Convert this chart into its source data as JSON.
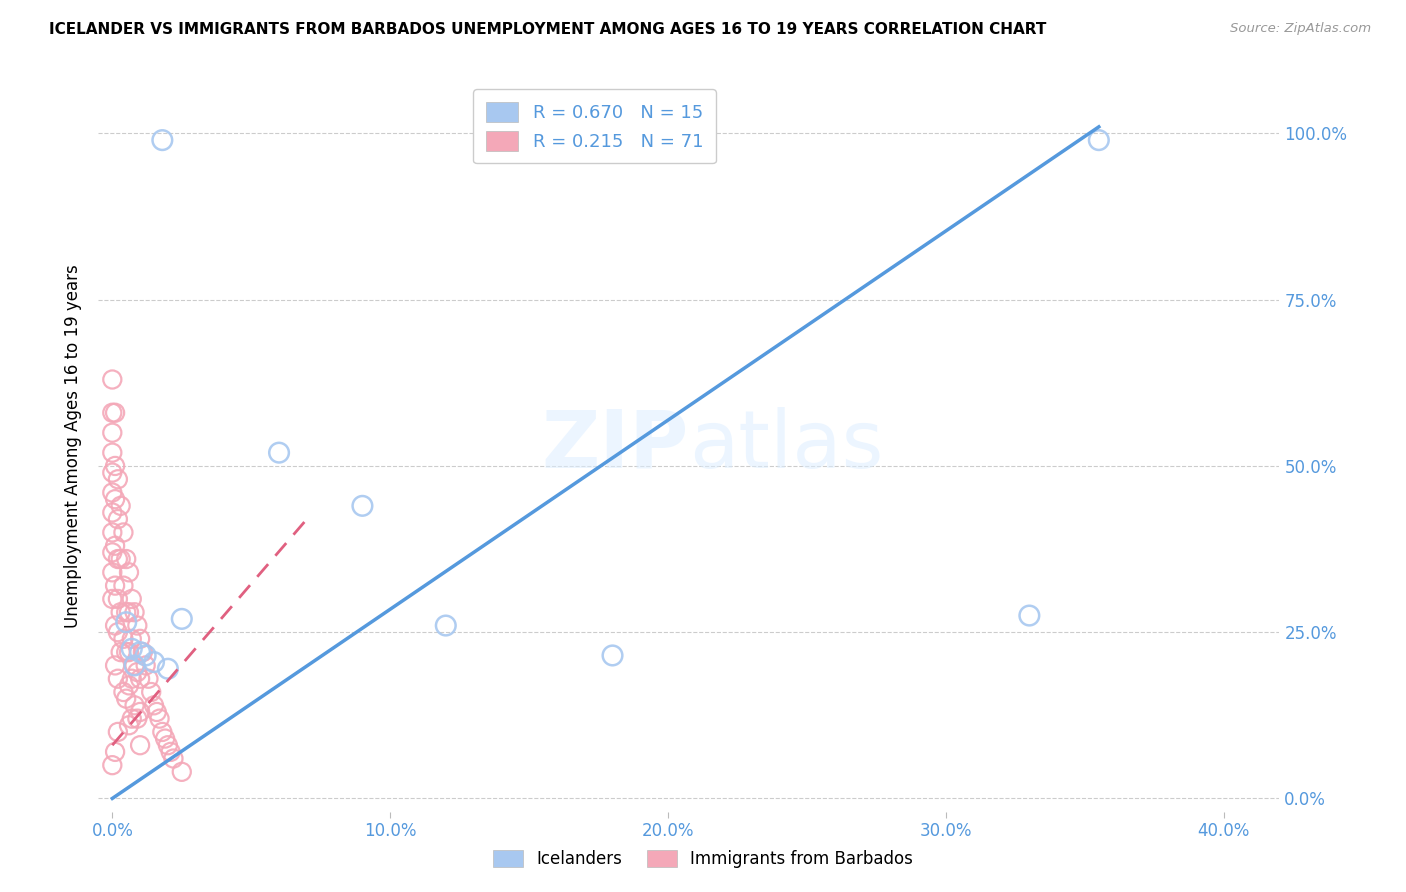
{
  "title": "ICELANDER VS IMMIGRANTS FROM BARBADOS UNEMPLOYMENT AMONG AGES 16 TO 19 YEARS CORRELATION CHART",
  "source": "Source: ZipAtlas.com",
  "ylabel": "Unemployment Among Ages 16 to 19 years",
  "color_blue": "#a8c8f0",
  "color_pink": "#f4a8b8",
  "color_line_blue": "#5599dd",
  "color_line_pink": "#e06080",
  "color_axis_labels": "#5599dd",
  "color_grid": "#cccccc",
  "legend_text_color": "#5599dd",
  "xlim": [
    -0.005,
    0.42
  ],
  "ylim": [
    -0.02,
    1.08
  ],
  "x_tick_vals": [
    0.0,
    0.1,
    0.2,
    0.3,
    0.4
  ],
  "x_tick_labels": [
    "0.0%",
    "10.0%",
    "20.0%",
    "30.0%",
    "40.0%"
  ],
  "y_tick_vals": [
    0.0,
    0.25,
    0.5,
    0.75,
    1.0
  ],
  "y_tick_labels": [
    "0.0%",
    "25.0%",
    "50.0%",
    "75.0%",
    "100.0%"
  ],
  "blue_line_x": [
    0.0,
    0.355
  ],
  "blue_line_y": [
    0.0,
    1.01
  ],
  "pink_line_x": [
    0.0,
    0.07
  ],
  "pink_line_y": [
    0.08,
    0.42
  ],
  "ice_x": [
    0.018,
    0.005,
    0.007,
    0.01,
    0.012,
    0.015,
    0.008,
    0.02,
    0.025,
    0.06,
    0.09,
    0.12,
    0.18,
    0.33,
    0.355
  ],
  "ice_y": [
    0.99,
    0.265,
    0.225,
    0.22,
    0.215,
    0.205,
    0.2,
    0.195,
    0.27,
    0.52,
    0.44,
    0.26,
    0.215,
    0.275,
    0.99
  ],
  "bar_x": [
    0.0,
    0.0,
    0.0,
    0.0,
    0.0,
    0.0,
    0.0,
    0.0,
    0.0,
    0.0,
    0.0,
    0.0,
    0.001,
    0.001,
    0.001,
    0.001,
    0.001,
    0.001,
    0.001,
    0.001,
    0.002,
    0.002,
    0.002,
    0.002,
    0.002,
    0.002,
    0.002,
    0.003,
    0.003,
    0.003,
    0.003,
    0.004,
    0.004,
    0.004,
    0.004,
    0.005,
    0.005,
    0.005,
    0.005,
    0.006,
    0.006,
    0.006,
    0.006,
    0.006,
    0.007,
    0.007,
    0.007,
    0.007,
    0.008,
    0.008,
    0.008,
    0.009,
    0.009,
    0.009,
    0.01,
    0.01,
    0.01,
    0.01,
    0.011,
    0.012,
    0.013,
    0.014,
    0.015,
    0.016,
    0.017,
    0.018,
    0.019,
    0.02,
    0.021,
    0.022,
    0.025
  ],
  "bar_y": [
    0.63,
    0.58,
    0.55,
    0.52,
    0.49,
    0.46,
    0.43,
    0.4,
    0.37,
    0.34,
    0.3,
    0.05,
    0.58,
    0.5,
    0.45,
    0.38,
    0.32,
    0.26,
    0.2,
    0.07,
    0.48,
    0.42,
    0.36,
    0.3,
    0.25,
    0.18,
    0.1,
    0.44,
    0.36,
    0.28,
    0.22,
    0.4,
    0.32,
    0.24,
    0.16,
    0.36,
    0.28,
    0.22,
    0.15,
    0.34,
    0.28,
    0.22,
    0.17,
    0.11,
    0.3,
    0.24,
    0.18,
    0.12,
    0.28,
    0.2,
    0.14,
    0.26,
    0.19,
    0.12,
    0.24,
    0.18,
    0.13,
    0.08,
    0.22,
    0.2,
    0.18,
    0.16,
    0.14,
    0.13,
    0.12,
    0.1,
    0.09,
    0.08,
    0.07,
    0.06,
    0.04
  ]
}
